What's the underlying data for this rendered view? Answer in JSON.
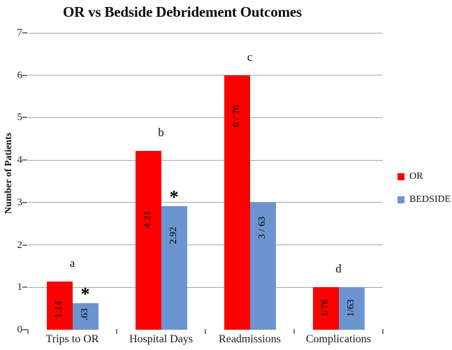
{
  "chart_data": {
    "type": "bar",
    "title": "OR vs Bedside Debridement Outcomes",
    "ylabel": "Number of Patients",
    "xlabel": "",
    "ylim": [
      0,
      7
    ],
    "ytick_labels": [
      "0",
      "1",
      "2",
      "3",
      "4",
      "5",
      "6",
      "7"
    ],
    "grid": true,
    "legend_position": "right",
    "categories": [
      "Trips to OR",
      "Hospital Days",
      "Readmissions",
      "Complications"
    ],
    "series": [
      {
        "name": "OR",
        "color": "#fe0000",
        "values": [
          1.14,
          4.21,
          6,
          1
        ],
        "bar_labels": [
          "1.14",
          "4.21",
          "6 / 76",
          "1/76"
        ],
        "label_frac": [
          0.58,
          0.38,
          0.16,
          0.49
        ]
      },
      {
        "name": "BEDSIDE",
        "color": "#6c94d0",
        "values": [
          0.63,
          2.92,
          3,
          1
        ],
        "bar_labels": [
          ".63",
          "2.92",
          "3 / 63",
          "1/63"
        ],
        "label_frac": [
          0.43,
          0.24,
          0.2,
          0.49
        ]
      }
    ],
    "annotations": {
      "letters": [
        "a",
        "b",
        "c",
        "d"
      ],
      "asterisk_symbol": "*",
      "asterisk_groups": [
        0,
        1
      ]
    },
    "colors": {
      "grid": "#a6a6a6",
      "axis": "#7f7f7f",
      "or_red": "#fe0000",
      "bedside_blue": "#6c94d0"
    }
  }
}
